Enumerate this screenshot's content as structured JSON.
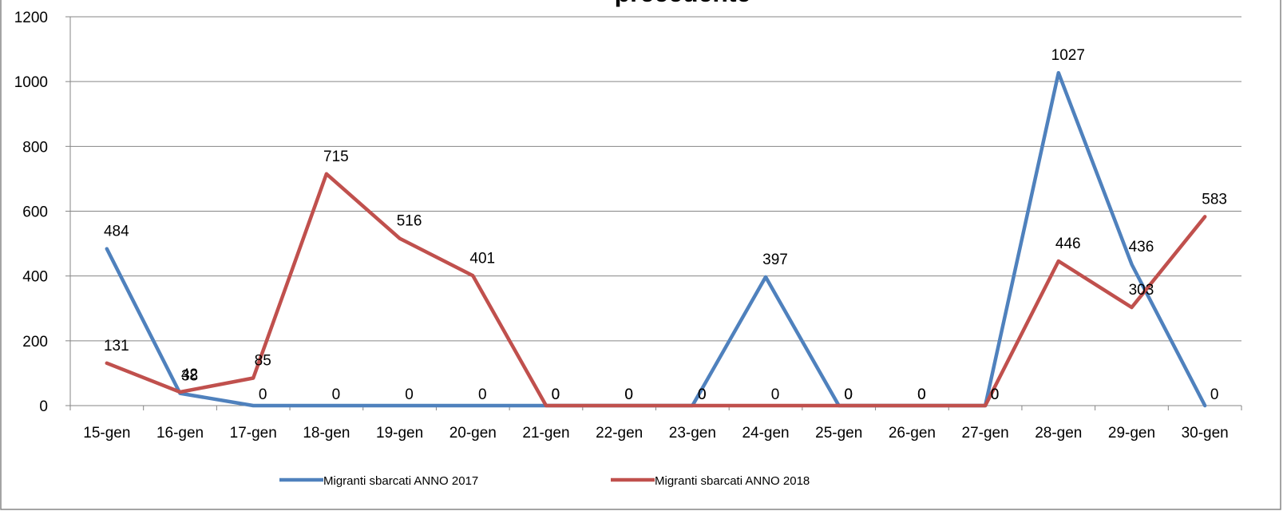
{
  "chart_data": {
    "type": "line",
    "title": "precedente",
    "categories": [
      "15-gen",
      "16-gen",
      "17-gen",
      "18-gen",
      "19-gen",
      "20-gen",
      "21-gen",
      "22-gen",
      "23-gen",
      "24-gen",
      "25-gen",
      "26-gen",
      "27-gen",
      "28-gen",
      "29-gen",
      "30-gen"
    ],
    "ylim": [
      0,
      1200
    ],
    "yticks": [
      "0",
      "200",
      "400",
      "600",
      "800",
      "1000",
      "1200"
    ],
    "grid": true,
    "legend_position": "bottom",
    "series": [
      {
        "name": "Migranti sbarcati ANNO 2017",
        "color": "#4F81BD",
        "values": [
          484,
          38,
          0,
          0,
          0,
          0,
          0,
          0,
          0,
          397,
          0,
          0,
          0,
          1027,
          436,
          0
        ]
      },
      {
        "name": "Migranti sbarcati ANNO 2018",
        "color": "#C0504D",
        "values": [
          131,
          42,
          85,
          715,
          516,
          401,
          0,
          0,
          0,
          0,
          0,
          0,
          0,
          446,
          303,
          583
        ]
      }
    ],
    "data_labels": [
      [
        "484",
        "38",
        "0",
        "0",
        "0",
        "0",
        "0",
        "0",
        "0",
        "397",
        "0",
        "0",
        "0",
        "1027",
        "436",
        "0"
      ],
      [
        "131",
        "42",
        "85",
        "715",
        "516",
        "401",
        "0",
        "0",
        "0",
        "0",
        "0",
        "0",
        "0",
        "446",
        "303",
        "583"
      ]
    ]
  }
}
